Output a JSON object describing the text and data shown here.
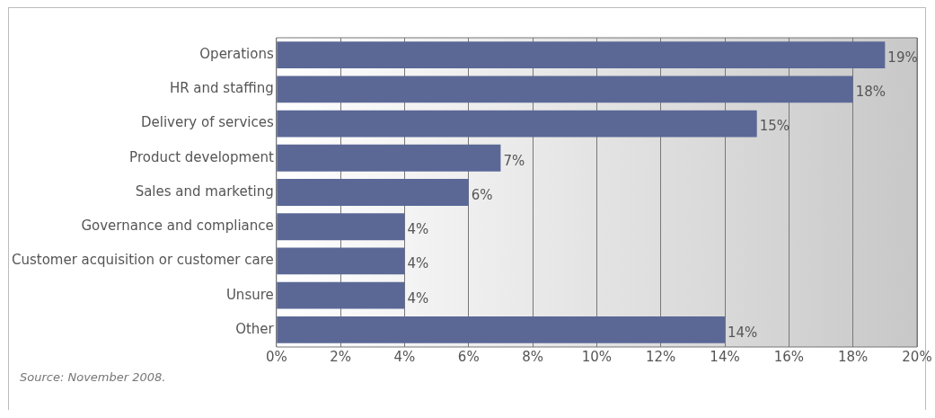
{
  "chart_data": {
    "type": "bar",
    "orientation": "horizontal",
    "categories": [
      "Operations",
      "HR and staffing",
      "Delivery of services",
      "Product development",
      "Sales and marketing",
      "Governance and compliance",
      "Customer acquisition or customer care",
      "Unsure",
      "Other"
    ],
    "values": [
      19,
      18,
      15,
      7,
      6,
      4,
      4,
      4,
      14
    ],
    "value_labels": [
      "19%",
      "18%",
      "15%",
      "7%",
      "6%",
      "4%",
      "4%",
      "4%",
      "14%"
    ],
    "color": "#5b6896",
    "xlim": [
      0,
      20
    ],
    "xticks": [
      {
        "value": 0,
        "label": "0%"
      },
      {
        "value": 2,
        "label": "2%"
      },
      {
        "value": 4,
        "label": "4%"
      },
      {
        "value": 6,
        "label": "6%"
      },
      {
        "value": 8,
        "label": "8%"
      },
      {
        "value": 10,
        "label": "10%"
      },
      {
        "value": 12,
        "label": "12%"
      },
      {
        "value": 14,
        "label": "14%"
      },
      {
        "value": 16,
        "label": "16%"
      },
      {
        "value": 18,
        "label": "18%"
      },
      {
        "value": 20,
        "label": "20%"
      }
    ],
    "grid": "x",
    "annotations": [
      "Source: November 2008."
    ]
  }
}
